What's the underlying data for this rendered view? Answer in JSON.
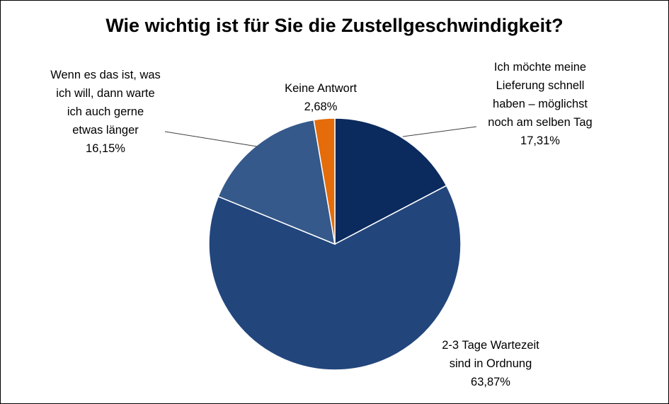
{
  "chart_data": {
    "type": "pie",
    "title": "Wie wichtig ist für Sie die Zustellgeschwindigkeit?",
    "slices": [
      {
        "label": [
          "Ich möchte meine",
          "Lieferung schnell",
          "haben – möglichst",
          "noch am selben Tag"
        ],
        "value": 17.31,
        "value_label": "17,31%",
        "color": "#0b2a5e"
      },
      {
        "label": [
          "2-3 Tage Wartezeit",
          "sind in Ordnung"
        ],
        "value": 63.87,
        "value_label": "63,87%",
        "color": "#22467c"
      },
      {
        "label": [
          "Wenn es das ist, was",
          "ich will, dann warte",
          "ich auch gerne",
          "etwas länger"
        ],
        "value": 16.15,
        "value_label": "16,15%",
        "color": "#35598a"
      },
      {
        "label": [
          "Keine Antwort"
        ],
        "value": 2.68,
        "value_label": "2,68%",
        "color": "#e46c0a"
      }
    ],
    "legend": "none",
    "label_position": "outside"
  }
}
